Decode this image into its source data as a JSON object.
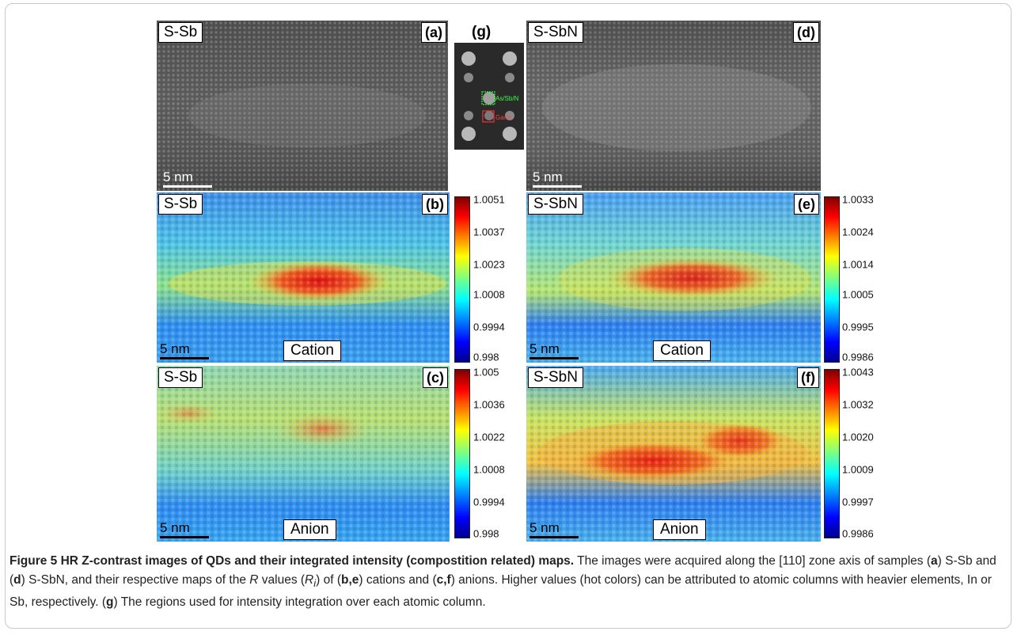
{
  "panels": {
    "a": {
      "sample": "S-Sb",
      "letter": "(a)",
      "scale": "5 nm"
    },
    "d": {
      "sample": "S-SbN",
      "letter": "(d)",
      "scale": "5 nm"
    },
    "g": {
      "letter": "(g)",
      "green_label": "As/Sb/N",
      "red_label": "Ga/In"
    },
    "b": {
      "sample": "S-Sb",
      "letter": "(b)",
      "scale": "5 nm",
      "type": "Cation",
      "colorbar": [
        "1.0051",
        "1.0037",
        "1.0023",
        "1.0008",
        "0.9994",
        "0.998"
      ]
    },
    "c": {
      "sample": "S-Sb",
      "letter": "(c)",
      "scale": "5 nm",
      "type": "Anion",
      "colorbar": [
        "1.005",
        "1.0036",
        "1.0022",
        "1.0008",
        "0.9994",
        "0.998"
      ]
    },
    "e": {
      "sample": "S-SbN",
      "letter": "(e)",
      "scale": "5 nm",
      "type": "Cation",
      "colorbar": [
        "1.0033",
        "1.0024",
        "1.0014",
        "1.0005",
        "0.9995",
        "0.9986"
      ]
    },
    "f": {
      "sample": "S-SbN",
      "letter": "(f)",
      "scale": "5 nm",
      "type": "Anion",
      "colorbar": [
        "1.0043",
        "1.0032",
        "1.0020",
        "1.0009",
        "0.9997",
        "0.9986"
      ]
    }
  },
  "caption": {
    "label": "Figure 5",
    "title": " HR Z-contrast images of QDs and their integrated intensity (compostition related) maps.",
    "p1": " The images were acquired along the [110] zone axis of samples (",
    "a": "a",
    "p2": ") S-Sb and (",
    "d": "d",
    "p3": ") S-SbN, and their respective maps of the ",
    "R": "R",
    "p4": " values (",
    "Ri": "R",
    "i": "i",
    "p5": ") of (",
    "be": "b,e",
    "p6": ") cations and (",
    "cf": "c,f",
    "p7": ") anions. Higher values (hot colors) can be attributed to atomic columns with heavier elements, In or Sb, respectively. (",
    "g": "g",
    "p8": ") The regions used for intensity integration over each atomic column."
  },
  "colors": {
    "jet_high": "#b00000",
    "jet_mid": "#ffff40",
    "jet_low": "#00008f"
  }
}
